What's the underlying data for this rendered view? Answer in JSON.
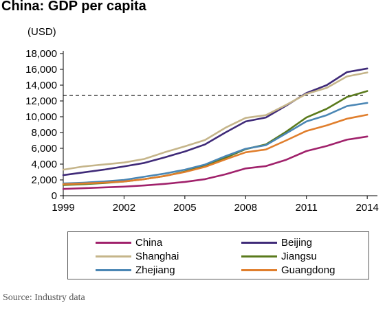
{
  "chart_data": {
    "type": "line",
    "title": "China: GDP per capita",
    "unit_label": "(USD)",
    "x": [
      1999,
      2000,
      2001,
      2002,
      2003,
      2004,
      2005,
      2006,
      2007,
      2008,
      2009,
      2010,
      2011,
      2012,
      2013,
      2014
    ],
    "xticks": [
      1999,
      2002,
      2005,
      2008,
      2011,
      2014
    ],
    "xtick_labels": [
      "1999",
      "2002",
      "2005",
      "2008",
      "2011",
      "2014"
    ],
    "xlim": [
      1999,
      2014.3
    ],
    "ylim": [
      0,
      18000
    ],
    "yticks": [
      0,
      2000,
      4000,
      6000,
      8000,
      10000,
      12000,
      14000,
      16000,
      18000
    ],
    "ytick_labels": [
      "0",
      "2,000",
      "4,000",
      "6,000",
      "8,000",
      "10,000",
      "12,000",
      "14,000",
      "16,000",
      "18,000"
    ],
    "reference_line": 12700,
    "grid": false,
    "legend_position": "bottom",
    "series": [
      {
        "name": "China",
        "color": "#a0216b",
        "values": [
          850,
          950,
          1050,
          1150,
          1300,
          1500,
          1750,
          2100,
          2700,
          3450,
          3750,
          4550,
          5650,
          6300,
          7100,
          7500
        ]
      },
      {
        "name": "Beijing",
        "color": "#3f2a78",
        "values": [
          2600,
          2950,
          3300,
          3700,
          4150,
          4850,
          5600,
          6500,
          8000,
          9400,
          9900,
          11400,
          13000,
          14000,
          15650,
          16100
        ]
      },
      {
        "name": "Shanghai",
        "color": "#c5b58a",
        "values": [
          3300,
          3700,
          3950,
          4200,
          4650,
          5500,
          6250,
          7050,
          8600,
          9850,
          10200,
          11500,
          12900,
          13650,
          15100,
          15600
        ]
      },
      {
        "name": "Jiangsu",
        "color": "#5a7a1c",
        "values": [
          1350,
          1450,
          1600,
          1800,
          2100,
          2500,
          3050,
          3800,
          4800,
          5900,
          6500,
          8100,
          9900,
          11000,
          12500,
          13250
        ]
      },
      {
        "name": "Zhejiang",
        "color": "#4a86b4",
        "values": [
          1550,
          1650,
          1800,
          2000,
          2400,
          2800,
          3300,
          3950,
          5000,
          5950,
          6400,
          7900,
          9400,
          10200,
          11350,
          11750
        ]
      },
      {
        "name": "Guangdong",
        "color": "#e07e2c",
        "values": [
          1450,
          1550,
          1650,
          1800,
          2100,
          2500,
          3000,
          3650,
          4600,
          5500,
          5850,
          7000,
          8200,
          8900,
          9750,
          10250
        ]
      }
    ]
  },
  "source_text": "Source: Industry data"
}
